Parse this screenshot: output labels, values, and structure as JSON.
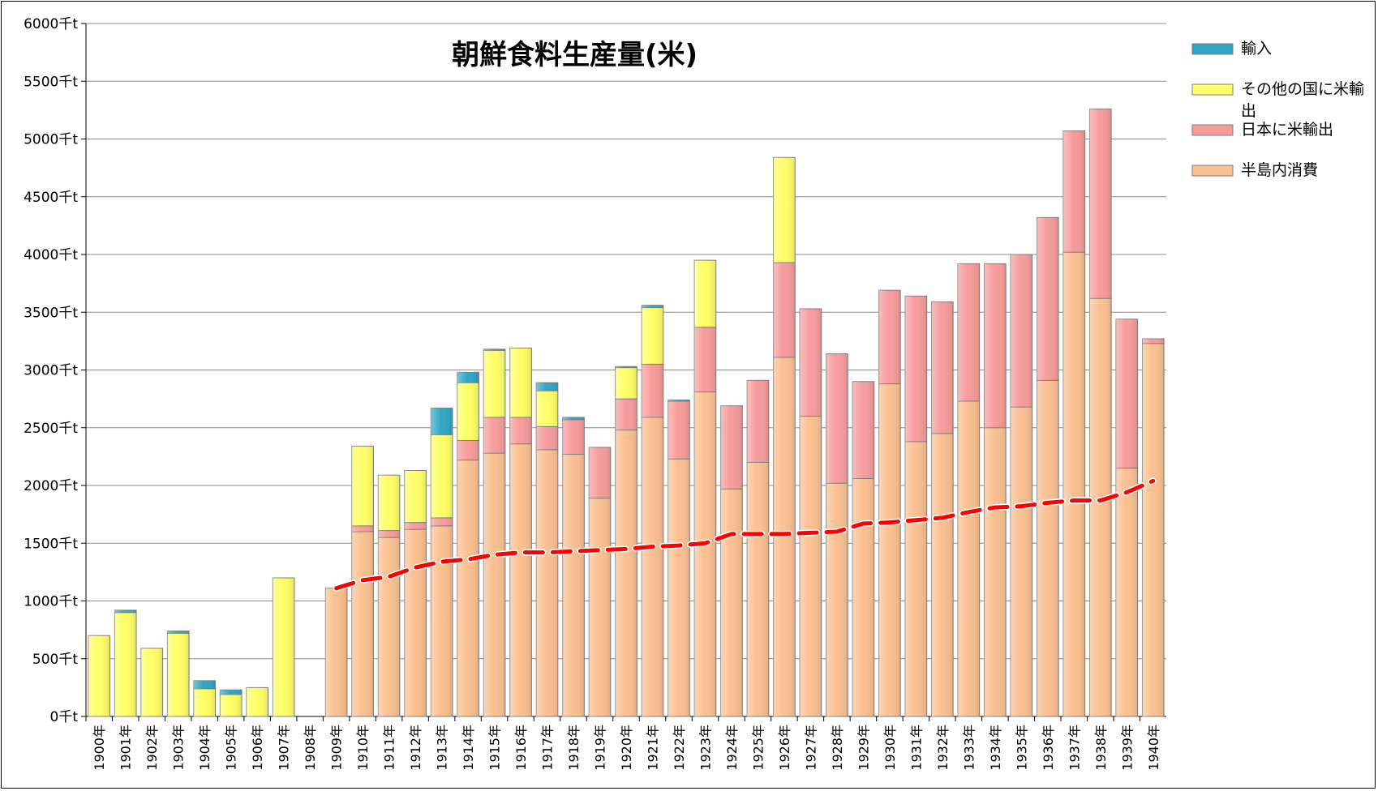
{
  "chart_data": {
    "type": "bar",
    "stacked": true,
    "title": "朝鮮食料生産量(米)",
    "categories": [
      "1900年",
      "1901年",
      "1902年",
      "1903年",
      "1904年",
      "1905年",
      "1906年",
      "1907年",
      "1908年",
      "1909年",
      "1910年",
      "1911年",
      "1912年",
      "1913年",
      "1914年",
      "1915年",
      "1916年",
      "1917年",
      "1918年",
      "1919年",
      "1920年",
      "1921年",
      "1922年",
      "1923年",
      "1924年",
      "1925年",
      "1926年",
      "1927年",
      "1928年",
      "1929年",
      "1930年",
      "1931年",
      "1932年",
      "1933年",
      "1934年",
      "1935年",
      "1936年",
      "1937年",
      "1938年",
      "1939年",
      "1940年"
    ],
    "ylim": [
      0,
      6000
    ],
    "yticks": [
      0,
      500,
      1000,
      1500,
      2000,
      2500,
      3000,
      3500,
      4000,
      4500,
      5000,
      5500,
      6000
    ],
    "ytick_suffix": "千t",
    "grid": true,
    "legend_position": "top-right",
    "series": [
      {
        "name": "半島内消費",
        "color": "#FAC090",
        "values": [
          0,
          0,
          0,
          0,
          0,
          0,
          0,
          0,
          0,
          1110,
          1600,
          1550,
          1620,
          1650,
          2220,
          2280,
          2360,
          2310,
          2270,
          1890,
          2480,
          2590,
          2230,
          2810,
          1970,
          2200,
          3110,
          2600,
          2020,
          2060,
          2880,
          2380,
          2450,
          2730,
          2500,
          2680,
          2910,
          4020,
          3620,
          2150,
          3230
        ]
      },
      {
        "name": "日本に米輸出",
        "color": "#F79B9B",
        "values": [
          0,
          0,
          0,
          0,
          0,
          0,
          0,
          0,
          0,
          0,
          50,
          60,
          60,
          70,
          170,
          310,
          230,
          200,
          300,
          440,
          270,
          460,
          500,
          560,
          720,
          710,
          820,
          930,
          1120,
          840,
          810,
          1260,
          1140,
          1190,
          1420,
          1320,
          1410,
          1050,
          1640,
          1290,
          40
        ]
      },
      {
        "name": "その他の国に米輸出",
        "color": "#FFFF66",
        "values": [
          700,
          900,
          590,
          720,
          240,
          190,
          250,
          1200,
          0,
          0,
          690,
          480,
          450,
          720,
          500,
          580,
          600,
          310,
          0,
          0,
          270,
          490,
          0,
          580,
          0,
          0,
          910,
          0,
          0,
          0,
          0,
          0,
          0,
          0,
          0,
          0,
          0,
          0,
          0,
          0,
          0
        ]
      },
      {
        "name": "輸入",
        "color": "#31A5C6",
        "values": [
          0,
          20,
          0,
          20,
          70,
          40,
          0,
          0,
          0,
          0,
          0,
          0,
          0,
          230,
          90,
          10,
          0,
          70,
          20,
          0,
          10,
          20,
          10,
          0,
          0,
          0,
          0,
          0,
          0,
          0,
          0,
          0,
          0,
          0,
          0,
          0,
          0,
          0,
          0,
          0,
          0
        ]
      }
    ],
    "trend_line": {
      "color": "#FF0000",
      "style": "dashed",
      "values": [
        null,
        null,
        null,
        null,
        null,
        null,
        null,
        null,
        null,
        1110,
        1180,
        1210,
        1290,
        1340,
        1360,
        1400,
        1420,
        1420,
        1430,
        1440,
        1450,
        1470,
        1480,
        1500,
        1580,
        1580,
        1580,
        1590,
        1600,
        1670,
        1680,
        1700,
        1720,
        1770,
        1810,
        1820,
        1850,
        1870,
        1870,
        1940,
        2040
      ]
    }
  }
}
